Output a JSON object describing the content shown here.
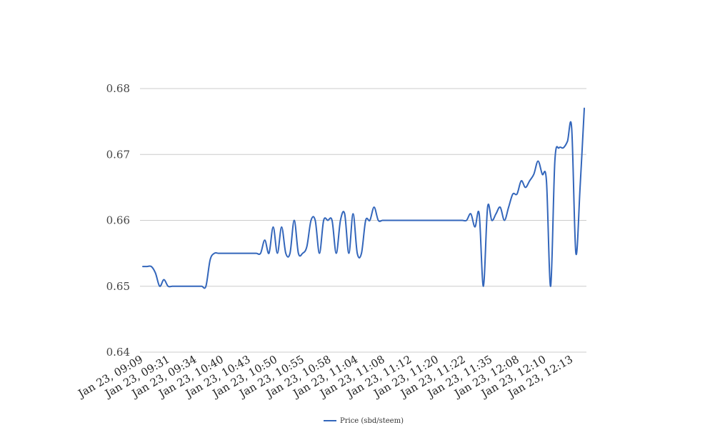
{
  "chart_data": {
    "type": "line",
    "title": "",
    "xlabel": "",
    "ylabel": "",
    "ylim": [
      0.64,
      0.68
    ],
    "yticks": [
      "0.64",
      "0.65",
      "0.66",
      "0.67",
      "0.68"
    ],
    "grid": "horizontal",
    "legend_position": "bottom",
    "color": "#3366bb",
    "x_tick_labels": [
      "Jan 23, 09:09",
      "Jan 23, 09:31",
      "Jan 23, 09:34",
      "Jan 23, 10:40",
      "Jan 23, 10:43",
      "Jan 23, 10:50",
      "Jan 23, 10:55",
      "Jan 23, 10:58",
      "Jan 23, 11:04",
      "Jan 23, 11:08",
      "Jan 23, 11:12",
      "Jan 23, 11:20",
      "Jan 23, 11:22",
      "Jan 23, 11:35",
      "Jan 23, 12:08",
      "Jan 23, 12:10",
      "Jan 23, 12:13"
    ],
    "series": [
      {
        "name": "Price (sbd/steem)",
        "values": [
          0.653,
          0.653,
          0.653,
          0.652,
          0.65,
          0.651,
          0.65,
          0.65,
          0.65,
          0.65,
          0.65,
          0.65,
          0.65,
          0.65,
          0.65,
          0.65,
          0.654,
          0.655,
          0.655,
          0.655,
          0.655,
          0.655,
          0.655,
          0.655,
          0.655,
          0.655,
          0.655,
          0.655,
          0.655,
          0.657,
          0.655,
          0.659,
          0.655,
          0.659,
          0.655,
          0.655,
          0.66,
          0.655,
          0.655,
          0.656,
          0.66,
          0.66,
          0.655,
          0.66,
          0.66,
          0.66,
          0.655,
          0.66,
          0.661,
          0.655,
          0.661,
          0.655,
          0.655,
          0.66,
          0.66,
          0.662,
          0.66,
          0.66,
          0.66,
          0.66,
          0.66,
          0.66,
          0.66,
          0.66,
          0.66,
          0.66,
          0.66,
          0.66,
          0.66,
          0.66,
          0.66,
          0.66,
          0.66,
          0.66,
          0.66,
          0.66,
          0.66,
          0.66,
          0.661,
          0.659,
          0.661,
          0.65,
          0.662,
          0.66,
          0.661,
          0.662,
          0.66,
          0.662,
          0.664,
          0.664,
          0.666,
          0.665,
          0.666,
          0.667,
          0.669,
          0.667,
          0.666,
          0.65,
          0.669,
          0.671,
          0.671,
          0.672,
          0.674,
          0.655,
          0.665,
          0.677
        ]
      }
    ]
  }
}
